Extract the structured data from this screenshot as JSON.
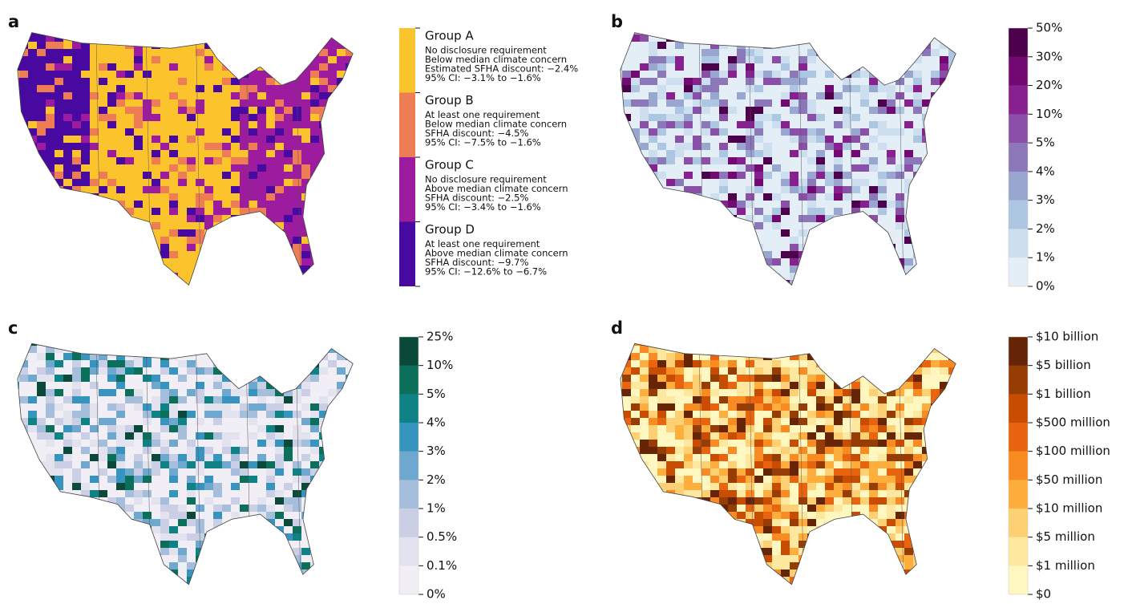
{
  "panels": [
    {
      "label": "a",
      "legend": {
        "groups": [
          {
            "name": "Group A",
            "color": "#fcc42c",
            "lines": [
              "No disclosure requirement",
              "Below median climate concern",
              "Estimated SFHA discount: −2.4%",
              "95% CI: −3.1% to −1.6%"
            ]
          },
          {
            "name": "Group B",
            "color": "#ee7d55",
            "lines": [
              "At least one requirement",
              "Below median climate concern",
              "SFHA discount: −4.5%",
              "95% CI: −7.5% to −1.6%"
            ]
          },
          {
            "name": "Group C",
            "color": "#9d1b9e",
            "lines": [
              "No disclosure requirement",
              "Above median climate concern",
              "SFHA discount: −2.5%",
              "95% CI: −3.4% to −1.6%"
            ]
          },
          {
            "name": "Group D",
            "color": "#4709a0",
            "lines": [
              "At least one requirement",
              "Above median climate concern",
              "SFHA discount: −9.7%",
              "95% CI: −12.6% to −6.7%"
            ]
          }
        ]
      }
    },
    {
      "label": "b",
      "legend": {
        "ticks": [
          "50%",
          "30%",
          "20%",
          "10%",
          "5%",
          "4%",
          "3%",
          "2%",
          "1%",
          "0%"
        ],
        "colors": [
          "#4d004b",
          "#730a74",
          "#86218f",
          "#8a4fa6",
          "#8c77b8",
          "#98a6d0",
          "#adc6e2",
          "#cddeee",
          "#e3eef6",
          "#f4f9fc"
        ]
      }
    },
    {
      "label": "c",
      "legend": {
        "ticks": [
          "25%",
          "10%",
          "5%",
          "4%",
          "3%",
          "2%",
          "1%",
          "0.5%",
          "0.1%",
          "0%"
        ],
        "colors": [
          "#0b4a3a",
          "#0b6f5a",
          "#0e8285",
          "#3794be",
          "#6ea8cf",
          "#a5bedc",
          "#cacfe6",
          "#e3e2ef",
          "#f2eef6",
          "#fdf7fb"
        ]
      }
    },
    {
      "label": "d",
      "legend": {
        "ticks": [
          "$10 billion",
          "$5 billion",
          "$1 billion",
          "$500 million",
          "$100 million",
          "$50 million",
          "$10 million",
          "$5 million",
          "$1 million",
          "$0"
        ],
        "colors": [
          "#662506",
          "#963c05",
          "#c84c02",
          "#e8640e",
          "#f88b22",
          "#fdae3d",
          "#fdd074",
          "#fee79e",
          "#fff6c0",
          "#ffffe5"
        ]
      }
    }
  ]
}
